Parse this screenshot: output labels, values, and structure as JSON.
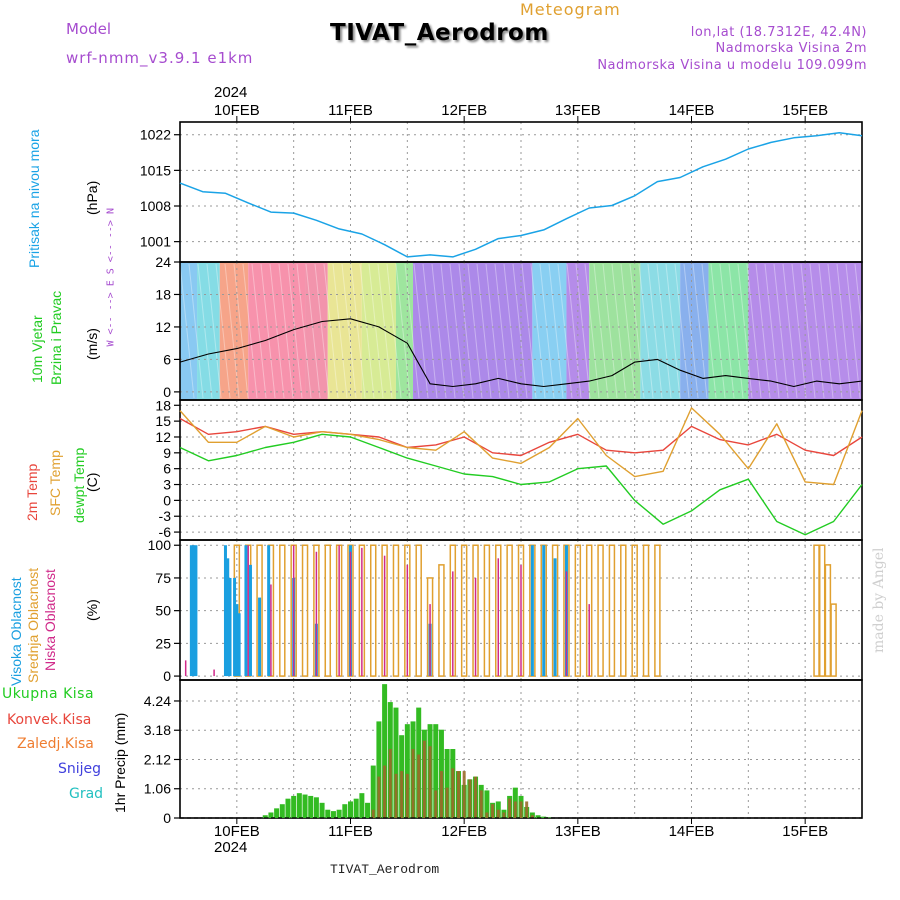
{
  "header": {
    "model_label": "Model",
    "model_name": "wrf-nmm_v3.9.1 e1km",
    "title": "TIVAT_Aerodrom",
    "subtitle": "Meteogram",
    "lonlat": "lon,lat (18.7312E, 42.4N)",
    "elev_station": "Nadmorska Visina 2m",
    "elev_model": "Nadmorska Visina u modelu 109.099m",
    "year_top": "2024",
    "year_bottom": "2024",
    "footer": "TIVAT_Aerodrom",
    "watermark": "made by Angel"
  },
  "colors": {
    "pressure": "#1aa3e6",
    "temp2m": "#e8463c",
    "sfc": "#e0a030",
    "dewpt": "#22cc22",
    "high_cloud": "#1a9fe0",
    "mid_cloud": "#e0a030",
    "low_cloud": "#d02a8a",
    "precip_total": "#33bb22",
    "precip_conv": "#e8463c",
    "wind_speed": "#000000",
    "violet": "#a64ccf"
  },
  "chart_data": [
    {
      "type": "line",
      "name": "pressure",
      "ylabel": [
        "Pritisak na nivou mora",
        "(hPa)"
      ],
      "yticks": [
        1001,
        1008,
        1015,
        1022
      ],
      "ylim": [
        997,
        1024.5
      ],
      "x": [
        0,
        0.2,
        0.4,
        0.6,
        0.8,
        1.0,
        1.2,
        1.4,
        1.6,
        1.8,
        2.0,
        2.2,
        2.4,
        2.6,
        2.8,
        3.0,
        3.2,
        3.4,
        3.6,
        3.8,
        4.0,
        4.2,
        4.4,
        4.6,
        4.8,
        5.0,
        5.2,
        5.4,
        5.6,
        5.8,
        6.0
      ],
      "values": [
        1012.5,
        1010.8,
        1010.5,
        1008.6,
        1006.8,
        1006.6,
        1005.2,
        1003.5,
        1002.5,
        1000.4,
        998.0,
        998.4,
        998.0,
        999.5,
        1001.6,
        1002.2,
        1003.3,
        1005.5,
        1007.6,
        1008.1,
        1010.0,
        1012.8,
        1013.6,
        1015.7,
        1017.2,
        1019.2,
        1020.5,
        1021.4,
        1021.8,
        1022.4,
        1021.8
      ]
    },
    {
      "type": "line",
      "name": "wind",
      "ylabel": [
        "10m Vjetar",
        "Brzina i Pravac",
        "(m/s)"
      ],
      "compass": "W <-- --> E   S <-- --> N",
      "yticks": [
        0,
        6,
        12,
        18,
        24
      ],
      "ylim": [
        -1.5,
        24
      ],
      "x": [
        0,
        0.25,
        0.5,
        0.75,
        1.0,
        1.25,
        1.5,
        1.75,
        2.0,
        2.2,
        2.4,
        2.6,
        2.8,
        3.0,
        3.2,
        3.4,
        3.6,
        3.8,
        4.0,
        4.2,
        4.4,
        4.6,
        4.8,
        5.0,
        5.2,
        5.4,
        5.6,
        5.8,
        6.0
      ],
      "values": [
        5.5,
        7.0,
        8.0,
        9.5,
        11.5,
        13.0,
        13.5,
        12.0,
        9.0,
        1.5,
        1.0,
        1.5,
        2.5,
        1.5,
        1.0,
        1.5,
        2.0,
        3.0,
        5.5,
        6.0,
        4.0,
        2.5,
        3.0,
        2.5,
        2.0,
        1.0,
        2.0,
        1.5,
        2.0
      ]
    },
    {
      "type": "line",
      "name": "temperature",
      "ylabel": [
        "2m Temp",
        "SFC Temp",
        "dewpt Temp",
        "(C)"
      ],
      "yticks": [
        -6,
        -3,
        0,
        3,
        6,
        9,
        12,
        15,
        18
      ],
      "ylim": [
        -7.5,
        19
      ],
      "x": [
        0,
        0.25,
        0.5,
        0.75,
        1.0,
        1.25,
        1.5,
        1.75,
        2.0,
        2.25,
        2.5,
        2.75,
        3.0,
        3.25,
        3.5,
        3.75,
        4.0,
        4.25,
        4.5,
        4.75,
        5.0,
        5.25,
        5.5,
        5.75,
        6.0
      ],
      "series": [
        {
          "name": "2m Temp",
          "values": [
            15.5,
            12.5,
            13.0,
            14.0,
            12.5,
            13.0,
            12.5,
            12.0,
            10.0,
            10.5,
            12.0,
            9.0,
            8.5,
            11.0,
            12.5,
            9.5,
            9.0,
            9.5,
            14.0,
            11.5,
            10.5,
            12.5,
            9.5,
            8.5,
            12.0
          ]
        },
        {
          "name": "SFC Temp",
          "values": [
            17.0,
            11.0,
            11.0,
            14.0,
            12.0,
            13.0,
            12.5,
            11.5,
            10.0,
            9.5,
            13.0,
            8.0,
            7.0,
            10.0,
            15.5,
            8.5,
            4.5,
            5.5,
            17.5,
            12.5,
            6.0,
            14.5,
            3.5,
            3.0,
            17.0
          ]
        },
        {
          "name": "dewpt Temp",
          "values": [
            10.0,
            7.5,
            8.5,
            10.0,
            11.0,
            12.5,
            12.0,
            10.0,
            8.0,
            6.5,
            5.0,
            4.5,
            3.0,
            3.5,
            6.0,
            6.5,
            0.0,
            -4.5,
            -2.0,
            2.0,
            4.0,
            -4.0,
            -6.5,
            -4.0,
            3.0
          ]
        }
      ]
    },
    {
      "type": "bar",
      "name": "clouds",
      "ylabel": [
        "Visoka Oblacnost",
        "Srednja Oblacnost",
        "Niska Oblacnost",
        "(%)"
      ],
      "yticks": [
        0,
        25,
        50,
        75,
        100
      ],
      "ylim": [
        -3,
        104
      ],
      "high_cloud": {
        "x": [
          0.1,
          0.12,
          0.14,
          0.4,
          0.42,
          0.44,
          0.48,
          0.5,
          0.52,
          0.58,
          0.62,
          0.7,
          0.78,
          1.0,
          1.2,
          1.5,
          2.2,
          3.1,
          3.2,
          3.3,
          3.4
        ],
        "values": [
          100,
          100,
          100,
          100,
          90,
          75,
          75,
          55,
          48,
          100,
          85,
          60,
          100,
          75,
          40,
          100,
          40,
          100,
          100,
          90,
          100
        ]
      },
      "mid_cloud": {
        "x": [
          0.5,
          0.6,
          0.7,
          0.8,
          0.9,
          1.0,
          1.1,
          1.2,
          1.3,
          1.4,
          1.5,
          1.6,
          1.7,
          1.8,
          1.9,
          2.0,
          2.1,
          2.2,
          2.3,
          2.4,
          2.5,
          2.6,
          2.7,
          2.8,
          2.9,
          3.0,
          3.1,
          3.2,
          3.3,
          3.4,
          3.5,
          3.6,
          3.7,
          3.8,
          3.9,
          4.0,
          4.1,
          4.2,
          5.6,
          5.65,
          5.7,
          5.75
        ],
        "values": [
          100,
          100,
          100,
          100,
          100,
          100,
          100,
          100,
          100,
          100,
          100,
          100,
          100,
          100,
          100,
          100,
          100,
          75,
          85,
          100,
          100,
          100,
          100,
          100,
          100,
          100,
          100,
          100,
          100,
          100,
          100,
          100,
          100,
          100,
          100,
          100,
          100,
          100,
          100,
          100,
          85,
          55
        ]
      },
      "low_cloud": {
        "x": [
          0.05,
          0.3,
          0.6,
          0.8,
          1.0,
          1.2,
          1.4,
          1.5,
          1.6,
          1.8,
          2.0,
          2.2,
          2.4,
          2.6,
          2.8,
          3.0,
          3.4,
          3.6
        ],
        "values": [
          12,
          5,
          100,
          70,
          100,
          95,
          100,
          95,
          98,
          92,
          85,
          55,
          80,
          75,
          90,
          85,
          80,
          55
        ]
      }
    },
    {
      "type": "bar",
      "name": "precip",
      "ylabel": [
        "1hr Precip (mm)"
      ],
      "legend": [
        "Ukupna Kisa",
        "Konvek.Kisa",
        "Zaledj.Kisa",
        "Snijeg",
        "Grad"
      ],
      "yticks": [
        0,
        1.06,
        2.12,
        3.18,
        4.24
      ],
      "ylim": [
        0,
        5.0
      ],
      "x": [
        0.75,
        0.8,
        0.85,
        0.9,
        0.95,
        1.0,
        1.05,
        1.1,
        1.15,
        1.2,
        1.25,
        1.3,
        1.35,
        1.4,
        1.45,
        1.5,
        1.55,
        1.6,
        1.65,
        1.7,
        1.75,
        1.8,
        1.85,
        1.9,
        1.95,
        2.0,
        2.05,
        2.1,
        2.15,
        2.2,
        2.25,
        2.3,
        2.35,
        2.4,
        2.45,
        2.5,
        2.55,
        2.6,
        2.65,
        2.7,
        2.75,
        2.8,
        2.85,
        2.9,
        2.95,
        3.0,
        3.05,
        3.1,
        3.15,
        3.2,
        3.25
      ],
      "series": [
        {
          "name": "Ukupna Kisa",
          "values": [
            0.1,
            0.2,
            0.35,
            0.5,
            0.7,
            0.8,
            0.9,
            0.85,
            0.8,
            0.75,
            0.55,
            0.3,
            0.25,
            0.3,
            0.5,
            0.6,
            0.7,
            0.9,
            0.55,
            1.9,
            3.5,
            4.85,
            4.2,
            4.0,
            3.0,
            3.4,
            3.5,
            4.0,
            3.2,
            3.4,
            3.4,
            3.2,
            2.5,
            2.5,
            1.7,
            1.2,
            1.4,
            1.5,
            1.2,
            1.0,
            0.55,
            0.6,
            0.3,
            0.8,
            1.1,
            0.8,
            0.4,
            0.2,
            0.1,
            0.05,
            0.02
          ]
        },
        {
          "name": "Konvek.Kisa",
          "values": [
            0.0,
            0.0,
            0.0,
            0.0,
            0.0,
            0.0,
            0.0,
            0.0,
            0.0,
            0.0,
            0.0,
            0.0,
            0.0,
            0.0,
            0.0,
            0.0,
            0.0,
            0.0,
            0.0,
            0.3,
            1.5,
            1.9,
            2.5,
            1.6,
            1.7,
            1.6,
            2.5,
            2.3,
            2.8,
            2.6,
            1.0,
            1.7,
            1.1,
            1.8,
            1.7,
            1.7,
            1.4,
            1.5,
            1.0,
            0.2,
            0.5,
            0.3,
            0.2,
            0.7,
            0.6,
            0.6,
            0.6,
            0.1,
            0.0,
            0.0,
            0.0
          ]
        }
      ]
    }
  ],
  "x_axis": {
    "ticks": [
      "10FEB",
      "11FEB",
      "12FEB",
      "13FEB",
      "14FEB",
      "15FEB"
    ],
    "tick_x": [
      0.5,
      1.5,
      2.5,
      3.5,
      4.5,
      5.5
    ],
    "xlim": [
      0,
      6.0
    ]
  }
}
